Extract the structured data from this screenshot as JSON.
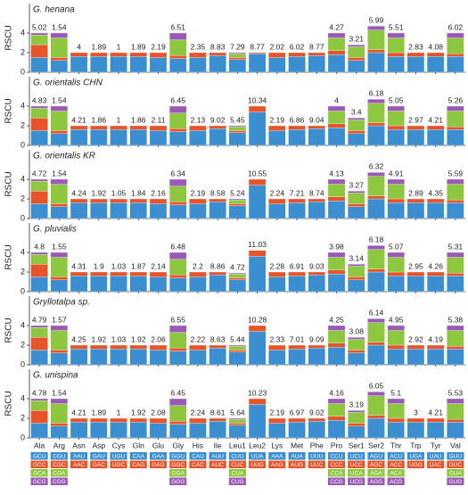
{
  "chart_data": [
    {
      "type": "bar",
      "title": "G. henana",
      "y_label": "RSCU",
      "ylim": [
        0,
        7
      ],
      "yticks": [
        0,
        2,
        4
      ],
      "annotations": [
        5.02,
        1.54,
        4,
        1.89,
        1,
        1.89,
        2.19,
        6.51,
        2.35,
        8.83,
        7.29,
        8.77,
        2.02,
        6.02,
        8.77,
        4.27,
        3.21,
        5.99,
        5.51,
        2.83,
        4.08,
        6.02
      ],
      "series": [
        {
          "color": "#3b8fd0",
          "values": [
            1.5,
            1.2,
            1.6,
            1.6,
            1.6,
            1.6,
            1.5,
            1.4,
            1.5,
            1.7,
            1.3,
            1.9,
            1.5,
            1.6,
            1.7,
            1.8,
            1.2,
            2.0,
            1.6,
            1.6,
            1.6,
            1.6
          ]
        },
        {
          "color": "#e8542a",
          "values": [
            1.3,
            0.3,
            0.4,
            0.4,
            0.4,
            0.4,
            0.5,
            0.3,
            0.5,
            0.3,
            0.2,
            0.1,
            0.5,
            0.4,
            0.3,
            0.4,
            0.3,
            0.3,
            0.4,
            0.4,
            0.4,
            0.3
          ]
        },
        {
          "color": "#8dc63f",
          "values": [
            1.0,
            2.0,
            null,
            null,
            null,
            null,
            null,
            1.6,
            null,
            null,
            0.4,
            null,
            null,
            null,
            null,
            1.3,
            1.1,
            2.0,
            1.5,
            null,
            null,
            1.6
          ]
        },
        {
          "color": "#9b59b6",
          "values": [
            0.2,
            0.5,
            null,
            null,
            null,
            null,
            null,
            0.7,
            null,
            null,
            0.1,
            null,
            null,
            null,
            null,
            0.5,
            0.2,
            0.4,
            0.5,
            null,
            null,
            0.5
          ]
        }
      ]
    },
    {
      "type": "bar",
      "title": "G. orientalis CHN",
      "y_label": "RSCU",
      "ylim": [
        0,
        7
      ],
      "yticks": [
        0,
        2,
        4
      ],
      "annotations": [
        4.83,
        1.54,
        4.21,
        1.86,
        1,
        1.86,
        2.11,
        6.45,
        2.13,
        9.02,
        5.45,
        10.34,
        2.19,
        6.86,
        9.04,
        4,
        3.4,
        6.18,
        5.05,
        2.97,
        4.21,
        5.26
      ],
      "series": [
        {
          "color": "#3b8fd0",
          "values": [
            1.5,
            1.2,
            1.6,
            1.6,
            1.6,
            1.6,
            1.5,
            1.4,
            1.5,
            1.7,
            1.3,
            3.4,
            1.5,
            1.6,
            1.7,
            1.8,
            1.2,
            2.0,
            1.6,
            1.6,
            1.6,
            1.6
          ]
        },
        {
          "color": "#e8542a",
          "values": [
            1.3,
            0.3,
            0.4,
            0.4,
            0.4,
            0.4,
            0.5,
            0.3,
            0.5,
            0.3,
            0.2,
            0.6,
            0.5,
            0.4,
            0.3,
            0.4,
            0.3,
            0.3,
            0.4,
            0.4,
            0.4,
            0.3
          ]
        },
        {
          "color": "#8dc63f",
          "values": [
            1.0,
            2.0,
            null,
            null,
            null,
            null,
            null,
            1.6,
            null,
            null,
            0.4,
            null,
            null,
            null,
            null,
            1.3,
            1.1,
            2.0,
            1.5,
            null,
            null,
            1.6
          ]
        },
        {
          "color": "#9b59b6",
          "values": [
            0.2,
            0.5,
            null,
            null,
            null,
            null,
            null,
            0.7,
            null,
            null,
            0.1,
            null,
            null,
            null,
            null,
            0.5,
            0.2,
            0.4,
            0.5,
            null,
            null,
            0.5
          ]
        }
      ]
    },
    {
      "type": "bar",
      "title": "G. orientalis KR",
      "y_label": "RSCU",
      "ylim": [
        0,
        7
      ],
      "yticks": [
        0,
        2,
        4
      ],
      "annotations": [
        4.72,
        1.54,
        4.24,
        1.92,
        1.05,
        1.84,
        2.16,
        6.34,
        2.19,
        8.58,
        5.24,
        10.55,
        2.24,
        7.21,
        8.74,
        4.13,
        3.27,
        6.32,
        4.91,
        2.89,
        4.35,
        5.59
      ],
      "series": [
        {
          "color": "#3b8fd0",
          "values": [
            1.5,
            1.2,
            1.6,
            1.6,
            1.6,
            1.6,
            1.5,
            1.4,
            1.5,
            1.7,
            1.3,
            3.4,
            1.5,
            1.6,
            1.7,
            1.8,
            1.2,
            2.0,
            1.6,
            1.6,
            1.6,
            1.6
          ]
        },
        {
          "color": "#e8542a",
          "values": [
            1.3,
            0.3,
            0.4,
            0.4,
            0.4,
            0.4,
            0.5,
            0.3,
            0.5,
            0.3,
            0.2,
            0.6,
            0.5,
            0.4,
            0.3,
            0.4,
            0.3,
            0.3,
            0.4,
            0.4,
            0.4,
            0.3
          ]
        },
        {
          "color": "#8dc63f",
          "values": [
            1.0,
            2.0,
            null,
            null,
            null,
            null,
            null,
            1.6,
            null,
            null,
            0.4,
            null,
            null,
            null,
            null,
            1.3,
            1.1,
            2.0,
            1.5,
            null,
            null,
            1.6
          ]
        },
        {
          "color": "#9b59b6",
          "values": [
            0.2,
            0.5,
            null,
            null,
            null,
            null,
            null,
            0.7,
            null,
            null,
            0.1,
            null,
            null,
            null,
            null,
            0.5,
            0.2,
            0.4,
            0.5,
            null,
            null,
            0.5
          ]
        }
      ]
    },
    {
      "type": "bar",
      "title": "G. pluvialis",
      "y_label": "RSCU",
      "ylim": [
        0,
        7
      ],
      "yticks": [
        0,
        2,
        4
      ],
      "annotations": [
        4.8,
        1.55,
        4.31,
        1.9,
        1.03,
        1.87,
        2.14,
        6.48,
        2.2,
        8.86,
        4.72,
        11.03,
        2.28,
        6.91,
        9.03,
        3.98,
        3.14,
        6.18,
        5.07,
        2.95,
        4.26,
        5.31
      ],
      "series": [
        {
          "color": "#3b8fd0",
          "values": [
            1.5,
            1.2,
            1.6,
            1.6,
            1.6,
            1.6,
            1.5,
            1.4,
            1.5,
            1.7,
            1.2,
            3.6,
            1.5,
            1.6,
            1.7,
            1.8,
            1.2,
            2.0,
            1.6,
            1.6,
            1.6,
            1.6
          ]
        },
        {
          "color": "#e8542a",
          "values": [
            1.3,
            0.3,
            0.4,
            0.4,
            0.4,
            0.4,
            0.5,
            0.3,
            0.5,
            0.3,
            0.2,
            0.6,
            0.5,
            0.4,
            0.3,
            0.4,
            0.3,
            0.3,
            0.4,
            0.4,
            0.4,
            0.3
          ]
        },
        {
          "color": "#8dc63f",
          "values": [
            1.0,
            2.0,
            null,
            null,
            null,
            null,
            null,
            1.6,
            null,
            null,
            0.4,
            null,
            null,
            null,
            null,
            1.3,
            1.1,
            2.0,
            1.5,
            null,
            null,
            1.6
          ]
        },
        {
          "color": "#9b59b6",
          "values": [
            0.2,
            0.5,
            null,
            null,
            null,
            null,
            null,
            0.7,
            null,
            null,
            0.1,
            null,
            null,
            null,
            null,
            0.5,
            0.2,
            0.4,
            0.5,
            null,
            null,
            0.5
          ]
        }
      ]
    },
    {
      "type": "bar",
      "title": "Gryllotalpa sp.",
      "y_label": "RSCU",
      "ylim": [
        0,
        7
      ],
      "yticks": [
        0,
        2,
        4
      ],
      "annotations": [
        4.79,
        1.57,
        4.25,
        1.92,
        1.03,
        1.92,
        2.06,
        6.55,
        2.22,
        8.63,
        5.44,
        10.28,
        2.33,
        7.01,
        9.09,
        4.25,
        3.08,
        6.14,
        4.95,
        2.92,
        4.19,
        5.38
      ],
      "series": [
        {
          "color": "#3b8fd0",
          "values": [
            1.5,
            1.2,
            1.6,
            1.6,
            1.6,
            1.6,
            1.5,
            1.4,
            1.5,
            1.7,
            1.3,
            3.4,
            1.5,
            1.6,
            1.7,
            1.8,
            1.2,
            2.0,
            1.6,
            1.6,
            1.6,
            1.6
          ]
        },
        {
          "color": "#e8542a",
          "values": [
            1.3,
            0.3,
            0.4,
            0.4,
            0.4,
            0.4,
            0.5,
            0.3,
            0.5,
            0.3,
            0.2,
            0.6,
            0.5,
            0.4,
            0.3,
            0.4,
            0.3,
            0.3,
            0.4,
            0.4,
            0.4,
            0.3
          ]
        },
        {
          "color": "#8dc63f",
          "values": [
            1.0,
            2.0,
            null,
            null,
            null,
            null,
            null,
            1.6,
            null,
            null,
            0.4,
            null,
            null,
            null,
            null,
            1.3,
            1.1,
            2.0,
            1.5,
            null,
            null,
            1.6
          ]
        },
        {
          "color": "#9b59b6",
          "values": [
            0.2,
            0.5,
            null,
            null,
            null,
            null,
            null,
            0.7,
            null,
            null,
            0.1,
            null,
            null,
            null,
            null,
            0.5,
            0.2,
            0.4,
            0.5,
            null,
            null,
            0.5
          ]
        }
      ]
    },
    {
      "type": "bar",
      "title": "G. unispina",
      "y_label": "RSCU",
      "ylim": [
        0,
        7
      ],
      "yticks": [
        0,
        2,
        4
      ],
      "annotations": [
        4.78,
        1.54,
        4.21,
        1.89,
        1,
        1.92,
        2.08,
        6.45,
        2.24,
        8.61,
        5.64,
        10.23,
        2.19,
        6.97,
        9.02,
        4.16,
        3.19,
        6.05,
        5.1,
        3,
        4.21,
        5.53
      ],
      "categories": [
        "Ala",
        "Arg",
        "Asn",
        "Asp",
        "Cys",
        "Gln",
        "Glu",
        "Gly",
        "His",
        "Ile",
        "Leu1",
        "Leu2",
        "Lys",
        "Met",
        "Phe",
        "Pro",
        "Ser1",
        "Ser2",
        "Thr",
        "Trp",
        "Tyr",
        "Val"
      ],
      "codons": [
        [
          "GCU",
          "GCC",
          "GCA",
          "GCG"
        ],
        [
          "CGU",
          "CGC",
          "CGA",
          "CGG"
        ],
        [
          "AAU",
          "AAC"
        ],
        [
          "GAU",
          "GAC"
        ],
        [
          "UGU",
          "UGC"
        ],
        [
          "CAA",
          "CAG"
        ],
        [
          "GAA",
          "GAG"
        ],
        [
          "GGU",
          "GGC",
          "GGA",
          "GGG"
        ],
        [
          "CAU",
          "CAC"
        ],
        [
          "AUU",
          "AUC"
        ],
        [
          "CUU",
          "CUC",
          "CUA",
          "CUG"
        ],
        [
          "UUA",
          "UUG"
        ],
        [
          "AAA",
          "AAG"
        ],
        [
          "AUA",
          "AUG"
        ],
        [
          "UUU",
          "UUC"
        ],
        [
          "CCU",
          "CCC",
          "CCA",
          "CCG"
        ],
        [
          "UCU",
          "UCC",
          "UCA",
          "UCG"
        ],
        [
          "AGU",
          "AGC",
          "AGA",
          "AGG"
        ],
        [
          "ACU",
          "ACC",
          "ACA",
          "ACG"
        ],
        [
          "UGA",
          "UGG"
        ],
        [
          "UAU",
          "UAC"
        ],
        [
          "GUU",
          "GUC",
          "GUA",
          "GUG"
        ]
      ],
      "series": [
        {
          "color": "#3b8fd0",
          "values": [
            1.5,
            1.2,
            1.6,
            1.6,
            1.6,
            1.6,
            1.5,
            1.4,
            1.5,
            1.7,
            1.3,
            3.4,
            1.5,
            1.6,
            1.7,
            1.8,
            1.2,
            2.0,
            1.6,
            1.6,
            1.6,
            1.6
          ]
        },
        {
          "color": "#e8542a",
          "values": [
            1.3,
            0.3,
            0.4,
            0.4,
            0.4,
            0.4,
            0.5,
            0.3,
            0.5,
            0.3,
            0.2,
            0.6,
            0.5,
            0.4,
            0.3,
            0.4,
            0.3,
            0.3,
            0.4,
            0.4,
            0.4,
            0.3
          ]
        },
        {
          "color": "#8dc63f",
          "values": [
            1.0,
            2.0,
            null,
            null,
            null,
            null,
            null,
            1.6,
            null,
            null,
            0.4,
            null,
            null,
            null,
            null,
            1.3,
            1.1,
            2.0,
            1.5,
            null,
            null,
            1.6
          ]
        },
        {
          "color": "#9b59b6",
          "values": [
            0.2,
            0.5,
            null,
            null,
            null,
            null,
            null,
            0.7,
            null,
            null,
            0.1,
            null,
            null,
            null,
            null,
            0.5,
            0.2,
            0.4,
            0.5,
            null,
            null,
            0.5
          ]
        }
      ]
    }
  ]
}
